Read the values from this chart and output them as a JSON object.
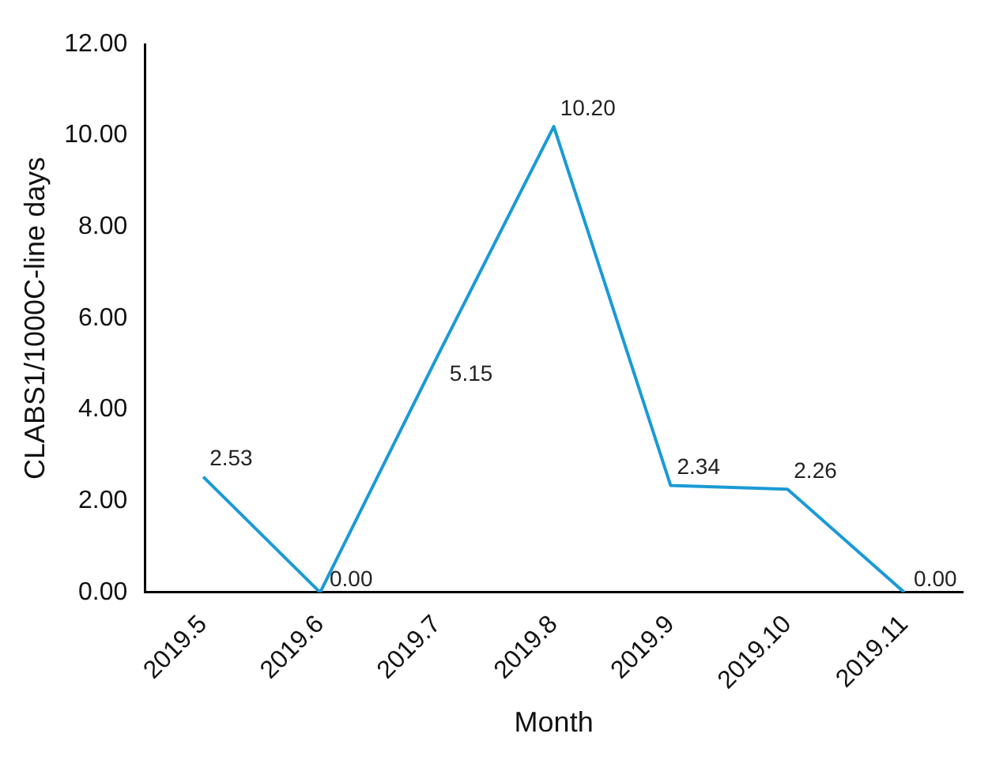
{
  "chart_data": {
    "type": "line",
    "xlabel": "Month",
    "ylabel": "CLABS1/1000C-line days",
    "categories": [
      "2019.5",
      "2019.6",
      "2019.7",
      "2019.8",
      "2019.9",
      "2019.10",
      "2019.11"
    ],
    "series": [
      {
        "color": "#1a9ad6",
        "values": [
          2.53,
          0,
          5.15,
          10.2,
          2.34,
          2.26,
          0
        ],
        "value_labels": [
          "2.53",
          "0.00",
          "5.15",
          "10.20",
          "2.34",
          "2.26",
          "0.00"
        ]
      }
    ],
    "ylim": [
      0,
      12
    ],
    "yticks": [
      {
        "value": 0,
        "label": "0.00"
      },
      {
        "value": 2,
        "label": "2.00"
      },
      {
        "value": 4,
        "label": "4.00"
      },
      {
        "value": 6,
        "label": "6.00"
      },
      {
        "value": 8,
        "label": "8.00"
      },
      {
        "value": 10,
        "label": "10.00"
      },
      {
        "value": 12,
        "label": "12.00"
      }
    ],
    "grid": false,
    "legend": false,
    "marker": "none",
    "line_style": "solid"
  }
}
